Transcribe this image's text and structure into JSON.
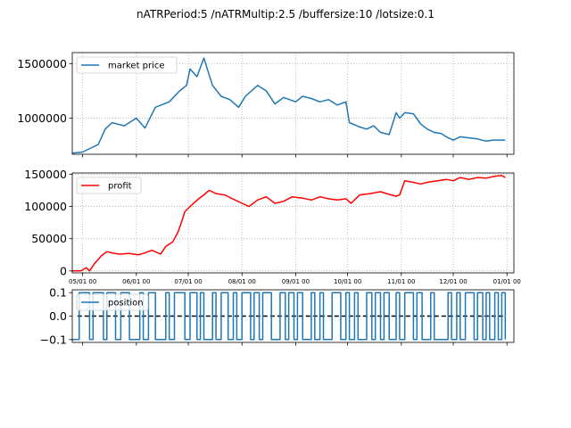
{
  "suptitle": "nATRPeriod:5 /nATRMultip:2.5 /buffersize:10 /lotsize:0.1",
  "x_tick_labels": [
    "05/01 00",
    "06/01 00",
    "07/01 00",
    "08/01 00",
    "09/01 00",
    "10/01 00",
    "11/01 00",
    "12/01 00",
    "01/01 00"
  ],
  "chart_data": [
    {
      "type": "line",
      "panel": "top",
      "grid": true,
      "legend_loc": "upper left",
      "ylim": [
        670000,
        1600000
      ],
      "yticks": [
        1000000,
        1500000
      ],
      "ytick_labels": [
        "1000000",
        "1500000"
      ],
      "x_dates": [
        "04-25",
        "05-01",
        "05-10",
        "05-14",
        "05-18",
        "05-25",
        "06-01",
        "06-06",
        "06-12",
        "06-20",
        "06-26",
        "06-30",
        "07-02",
        "07-06",
        "07-10",
        "07-15",
        "07-20",
        "07-25",
        "07-30",
        "08-03",
        "08-10",
        "08-15",
        "08-20",
        "08-25",
        "09-01",
        "09-05",
        "09-10",
        "09-15",
        "09-20",
        "09-25",
        "09-30",
        "10-02",
        "10-08",
        "10-12",
        "10-16",
        "10-20",
        "10-25",
        "10-29",
        "10-31",
        "11-03",
        "11-08",
        "11-12",
        "11-16",
        "11-20",
        "11-24",
        "11-28",
        "12-01",
        "12-05",
        "12-10",
        "12-15",
        "12-20",
        "12-24",
        "12-27",
        "12-31"
      ],
      "series": [
        {
          "name": "market price",
          "color": "#1f77b4",
          "values": [
            680000,
            690000,
            760000,
            900000,
            960000,
            930000,
            1000000,
            910000,
            1100000,
            1150000,
            1250000,
            1300000,
            1450000,
            1380000,
            1550000,
            1300000,
            1200000,
            1170000,
            1100000,
            1200000,
            1300000,
            1250000,
            1130000,
            1190000,
            1150000,
            1200000,
            1180000,
            1150000,
            1170000,
            1120000,
            1150000,
            960000,
            920000,
            900000,
            930000,
            870000,
            850000,
            1050000,
            1000000,
            1050000,
            1040000,
            950000,
            900000,
            870000,
            860000,
            820000,
            800000,
            830000,
            820000,
            810000,
            790000,
            800000,
            800000,
            800000
          ]
        }
      ]
    },
    {
      "type": "line",
      "panel": "middle",
      "grid": true,
      "legend_loc": "upper left",
      "ylim": [
        -3000,
        152000
      ],
      "yticks": [
        0,
        50000,
        100000,
        150000
      ],
      "ytick_labels": [
        "0",
        "50000",
        "100000",
        "150000"
      ],
      "x_dates": [
        "04-25",
        "04-30",
        "05-03",
        "05-05",
        "05-08",
        "05-12",
        "05-15",
        "05-18",
        "05-22",
        "05-28",
        "06-02",
        "06-06",
        "06-10",
        "06-15",
        "06-18",
        "06-22",
        "06-25",
        "06-27",
        "06-29",
        "07-02",
        "07-04",
        "07-07",
        "07-10",
        "07-13",
        "07-17",
        "07-22",
        "07-28",
        "08-01",
        "08-05",
        "08-10",
        "08-15",
        "08-20",
        "08-25",
        "08-30",
        "09-05",
        "09-10",
        "09-15",
        "09-20",
        "09-25",
        "09-30",
        "10-03",
        "10-08",
        "10-14",
        "10-20",
        "10-26",
        "10-29",
        "10-31",
        "11-03",
        "11-07",
        "11-12",
        "11-17",
        "11-22",
        "11-27",
        "12-01",
        "12-05",
        "12-10",
        "12-15",
        "12-20",
        "12-25",
        "12-29",
        "12-31"
      ],
      "series": [
        {
          "name": "profit",
          "color": "#ff0000",
          "values": [
            0,
            0,
            5000,
            0,
            12000,
            24000,
            30000,
            28000,
            26000,
            27000,
            25000,
            28000,
            32000,
            26000,
            38000,
            45000,
            60000,
            75000,
            92000,
            100000,
            105000,
            112000,
            118000,
            125000,
            120000,
            118000,
            110000,
            105000,
            100000,
            110000,
            115000,
            105000,
            108000,
            115000,
            113000,
            110000,
            115000,
            112000,
            110000,
            112000,
            105000,
            118000,
            120000,
            123000,
            118000,
            116000,
            118000,
            140000,
            138000,
            135000,
            138000,
            140000,
            142000,
            140000,
            145000,
            142000,
            145000,
            144000,
            147000,
            148000,
            145000
          ]
        }
      ]
    },
    {
      "type": "line",
      "panel": "bottom",
      "grid": false,
      "legend_loc": "upper left",
      "ylim": [
        -0.112,
        0.112
      ],
      "yticks": [
        -0.1,
        0.0,
        0.1
      ],
      "ytick_labels": [
        "−0.1",
        "0.0",
        "0.1"
      ],
      "reference_line": {
        "y": 0.0,
        "color": "#000000",
        "style": "dashed"
      },
      "x_dates": [
        "04-25",
        "04-27",
        "04-29",
        "05-02",
        "05-05",
        "05-07",
        "05-10",
        "05-13",
        "05-15",
        "05-18",
        "05-20",
        "05-23",
        "05-25",
        "05-28",
        "05-31",
        "06-03",
        "06-05",
        "06-08",
        "06-10",
        "06-12",
        "06-15",
        "06-18",
        "06-20",
        "06-23",
        "06-25",
        "06-27",
        "06-29",
        "07-02",
        "07-04",
        "07-06",
        "07-08",
        "07-10",
        "07-13",
        "07-15",
        "07-17",
        "07-20",
        "07-22",
        "07-24",
        "07-27",
        "07-29",
        "08-01",
        "08-03",
        "08-06",
        "08-08",
        "08-11",
        "08-13",
        "08-16",
        "08-18",
        "08-21",
        "08-23",
        "08-26",
        "08-28",
        "08-31",
        "09-02",
        "09-05",
        "09-07",
        "09-10",
        "09-12",
        "09-15",
        "09-17",
        "09-20",
        "09-22",
        "09-25",
        "09-27",
        "09-30",
        "10-02",
        "10-05",
        "10-07",
        "10-10",
        "10-12",
        "10-15",
        "10-17",
        "10-20",
        "10-22",
        "10-25",
        "10-27",
        "10-29",
        "10-31",
        "11-03",
        "11-05",
        "11-08",
        "11-10",
        "11-13",
        "11-15",
        "11-18",
        "11-20",
        "11-23",
        "11-25",
        "11-28",
        "11-30",
        "12-03",
        "12-05",
        "12-08",
        "12-10",
        "12-13",
        "12-15",
        "12-18",
        "12-20",
        "12-22",
        "12-25",
        "12-27",
        "12-29",
        "12-31"
      ],
      "series": [
        {
          "name": "position",
          "color": "#1f77b4",
          "values": [
            -0.1,
            -0.1,
            0.1,
            0.1,
            -0.1,
            0.1,
            0.1,
            -0.1,
            0.1,
            0.1,
            -0.1,
            0.1,
            0.1,
            -0.1,
            -0.1,
            0.1,
            -0.1,
            0.1,
            0.1,
            -0.1,
            -0.1,
            0.1,
            -0.1,
            0.1,
            0.1,
            0.1,
            -0.1,
            0.1,
            0.1,
            -0.1,
            0.1,
            -0.1,
            -0.1,
            0.1,
            -0.1,
            0.1,
            0.1,
            -0.1,
            0.1,
            -0.1,
            0.1,
            0.1,
            -0.1,
            0.1,
            -0.1,
            0.1,
            0.1,
            -0.1,
            -0.1,
            0.1,
            -0.1,
            0.1,
            -0.1,
            0.1,
            -0.1,
            -0.1,
            0.1,
            -0.1,
            0.1,
            -0.1,
            -0.1,
            0.1,
            0.1,
            -0.1,
            0.1,
            -0.1,
            0.1,
            -0.1,
            -0.1,
            0.1,
            -0.1,
            0.1,
            -0.1,
            0.1,
            -0.1,
            -0.1,
            0.1,
            -0.1,
            0.1,
            0.1,
            -0.1,
            0.1,
            -0.1,
            -0.1,
            0.1,
            -0.1,
            -0.1,
            -0.1,
            0.1,
            -0.1,
            0.1,
            -0.1,
            0.1,
            0.1,
            -0.1,
            0.1,
            -0.1,
            0.1,
            -0.1,
            0.1,
            -0.1,
            0.1,
            -0.1
          ]
        }
      ]
    }
  ]
}
